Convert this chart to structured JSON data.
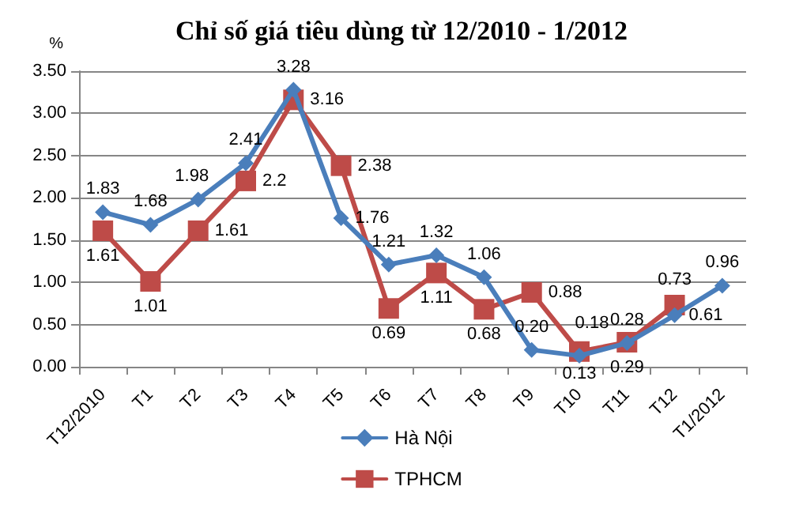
{
  "chart_data": {
    "type": "line",
    "title": "Chỉ số giá tiêu dùng từ 12/2010 - 1/2012",
    "ylabel": "%",
    "categories": [
      "T12/2010",
      "T1",
      "T2",
      "T3",
      "T4",
      "T5",
      "T6",
      "T7",
      "T8",
      "T9",
      "T10",
      "T11",
      "T12",
      "T1/2012"
    ],
    "series": [
      {
        "name": "Hà Nội",
        "color": "#4a7ebb",
        "marker": "diamond",
        "values": [
          1.83,
          1.68,
          1.98,
          2.41,
          3.28,
          1.76,
          1.21,
          1.32,
          1.06,
          0.2,
          0.13,
          0.28,
          0.61,
          0.96
        ],
        "value_labels": [
          "1.83",
          "1.68",
          "1.98",
          "2.41",
          "3.28",
          "1.76",
          "1.21",
          "1.32",
          "1.06",
          "0.20",
          "0.13",
          "0.28",
          "0.61",
          "0.96"
        ]
      },
      {
        "name": "TPHCM",
        "color": "#be4b48",
        "marker": "square",
        "values": [
          1.61,
          1.01,
          1.61,
          2.2,
          3.16,
          2.38,
          0.69,
          1.11,
          0.68,
          0.88,
          0.18,
          0.29,
          0.73,
          null
        ],
        "value_labels": [
          "1.61",
          "1.01",
          "1.61",
          "2.2",
          "3.16",
          "2.38",
          "0.69",
          "1.11",
          "0.68",
          "0.88",
          "0.18",
          "0.29",
          "0.73",
          null
        ]
      }
    ],
    "ylim": [
      0,
      3.5
    ],
    "yticks": [
      {
        "value": 0,
        "label": "0.00"
      },
      {
        "value": 0.5,
        "label": "0.50"
      },
      {
        "value": 1,
        "label": "1.00"
      },
      {
        "value": 1.5,
        "label": "1.50"
      },
      {
        "value": 2,
        "label": "2.00"
      },
      {
        "value": 2.5,
        "label": "2.50"
      },
      {
        "value": 3,
        "label": "3.00"
      },
      {
        "value": 3.5,
        "label": "3.50"
      }
    ],
    "grid": "y",
    "legend": "bottom",
    "line_style": "solid"
  }
}
